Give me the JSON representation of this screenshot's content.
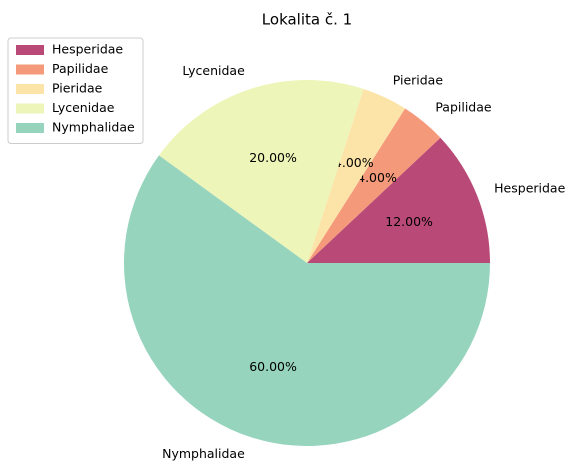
{
  "chart_data": {
    "type": "pie",
    "title": "Lokalita č. 1",
    "labels": [
      "Hesperidae",
      "Papilidae",
      "Pieridae",
      "Lycenidae",
      "Nymphalidae"
    ],
    "values": [
      12,
      4,
      4,
      20,
      60
    ],
    "value_labels": [
      "12.00%",
      "4.00%",
      "4.00%",
      "20.00%",
      "60.00%"
    ],
    "colors": [
      "#b94a78",
      "#f4997a",
      "#fce4a8",
      "#eef5b8",
      "#96d4be"
    ],
    "legend": "upper left"
  }
}
